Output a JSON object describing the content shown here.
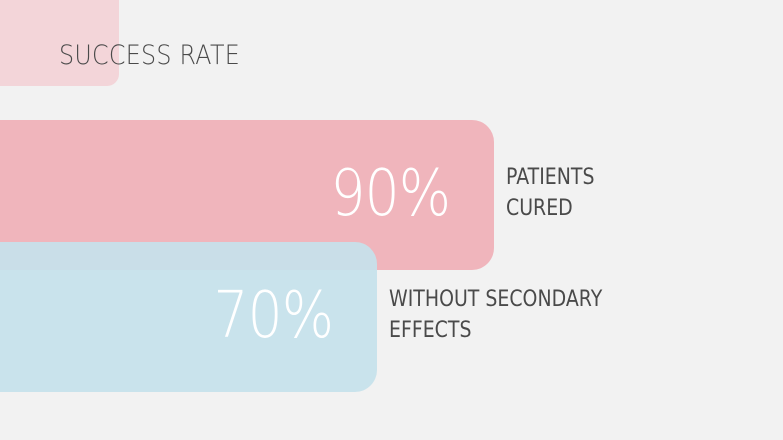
{
  "title": "SUCCESS RATE",
  "colors": {
    "background": "#f2f2f2",
    "title_tab": "#f3d5d9",
    "bar_primary": "#f0b5bc",
    "bar_secondary": "#c6e2ec",
    "percent_text": "#ffffff",
    "label_text": "#4a4a4a"
  },
  "chart_data": {
    "type": "bar",
    "orientation": "horizontal",
    "title": "SUCCESS RATE",
    "xlim": [
      0,
      100
    ],
    "grid": false,
    "series": [
      {
        "label": "PATIENTS\nCURED",
        "value": 90,
        "display": "90%",
        "color": "#f0b5bc"
      },
      {
        "label": "WITHOUT SECONDARY\nEFFECTS",
        "value": 70,
        "display": "70%",
        "color": "#c6e2ec"
      }
    ]
  }
}
